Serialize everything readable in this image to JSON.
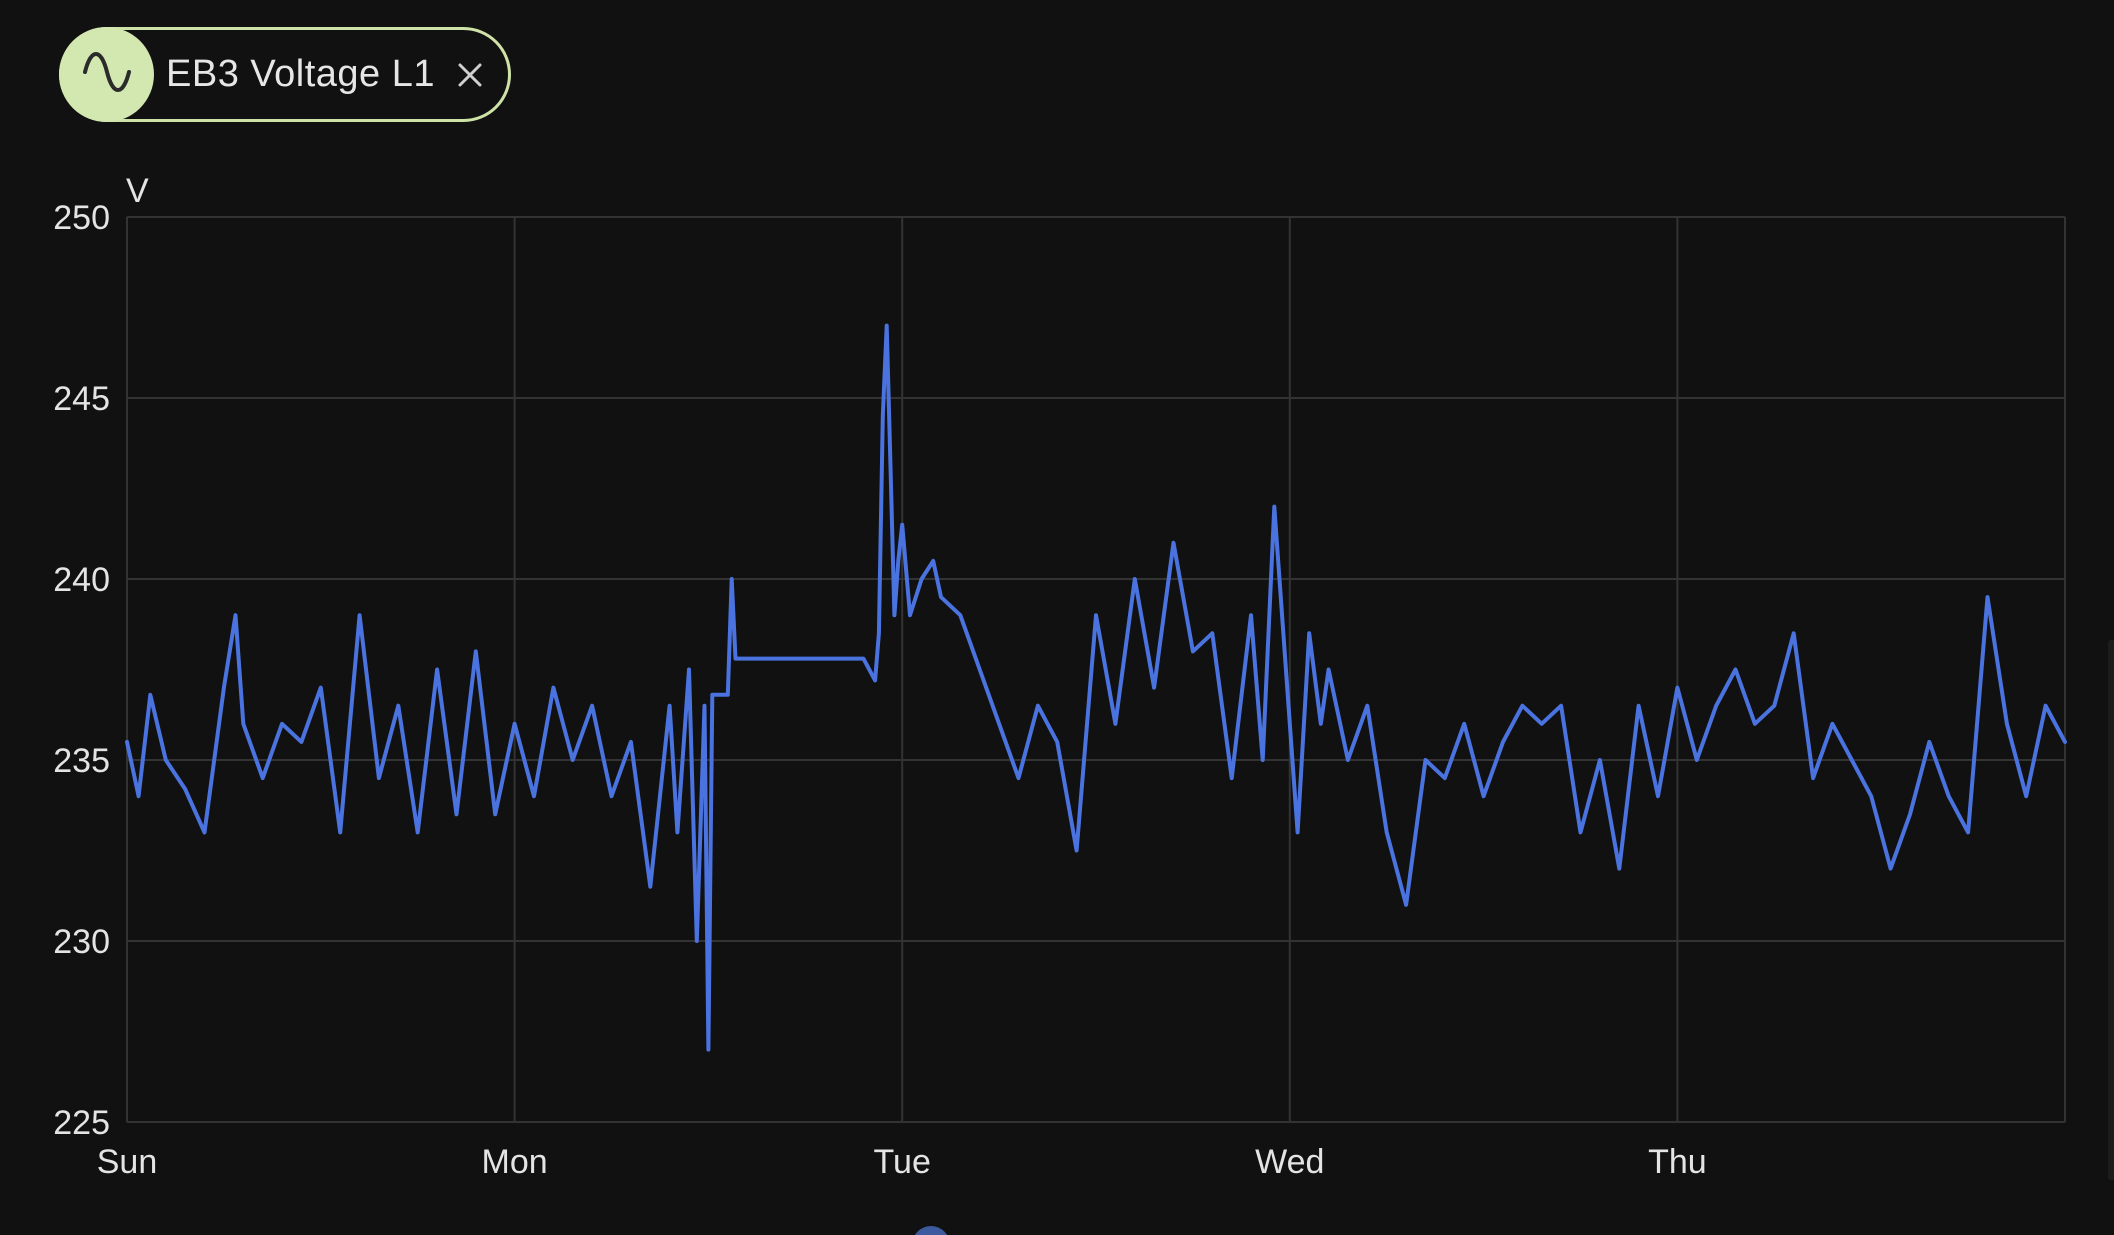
{
  "legend_chip": {
    "label": "EB3 Voltage L1",
    "icon": "sine-wave-icon",
    "close_icon": "close-icon",
    "avatar_color": "#d3e8b0",
    "border_color": "#cfe3a8"
  },
  "colors": {
    "background": "#111111",
    "grid": "#333333",
    "series": "#4a73e0",
    "text": "#e4e4e4"
  },
  "chart_data": {
    "type": "line",
    "ylabel": "V",
    "ylim": [
      225,
      250
    ],
    "yticks": [
      "225",
      "230",
      "235",
      "240",
      "245",
      "250"
    ],
    "xlim": [
      0,
      5
    ],
    "xticks": [
      {
        "label": "Sun",
        "x": 0
      },
      {
        "label": "Mon",
        "x": 1
      },
      {
        "label": "Tue",
        "x": 2
      },
      {
        "label": "Wed",
        "x": 3
      },
      {
        "label": "Thu",
        "x": 4
      }
    ],
    "grid": true,
    "series": [
      {
        "name": "EB3 Voltage L1",
        "x": [
          0.0,
          0.03,
          0.06,
          0.1,
          0.15,
          0.2,
          0.25,
          0.28,
          0.3,
          0.35,
          0.4,
          0.45,
          0.5,
          0.55,
          0.6,
          0.65,
          0.7,
          0.75,
          0.8,
          0.85,
          0.9,
          0.95,
          1.0,
          1.05,
          1.1,
          1.15,
          1.2,
          1.25,
          1.3,
          1.35,
          1.4,
          1.42,
          1.45,
          1.47,
          1.49,
          1.5,
          1.51,
          1.52,
          1.55,
          1.56,
          1.57,
          1.6,
          1.7,
          1.8,
          1.9,
          1.93,
          1.94,
          1.95,
          1.96,
          1.97,
          1.98,
          1.99,
          2.0,
          2.02,
          2.05,
          2.08,
          2.1,
          2.15,
          2.2,
          2.25,
          2.3,
          2.35,
          2.4,
          2.45,
          2.5,
          2.55,
          2.6,
          2.65,
          2.7,
          2.75,
          2.8,
          2.85,
          2.9,
          2.93,
          2.96,
          3.0,
          3.02,
          3.05,
          3.08,
          3.1,
          3.15,
          3.2,
          3.25,
          3.3,
          3.35,
          3.4,
          3.45,
          3.5,
          3.55,
          3.6,
          3.65,
          3.7,
          3.75,
          3.8,
          3.85,
          3.9,
          3.95,
          4.0,
          4.05,
          4.1,
          4.15,
          4.2,
          4.25,
          4.3,
          4.35,
          4.4,
          4.45,
          4.5,
          4.55,
          4.6,
          4.65,
          4.7,
          4.75,
          4.8,
          4.85,
          4.9,
          4.95,
          5.0
        ],
        "y": [
          235.5,
          234.0,
          236.8,
          235.0,
          234.2,
          233.0,
          237.0,
          239.0,
          236.0,
          234.5,
          236.0,
          235.5,
          237.0,
          233.0,
          239.0,
          234.5,
          236.5,
          233.0,
          237.5,
          233.5,
          238.0,
          233.5,
          236.0,
          234.0,
          237.0,
          235.0,
          236.5,
          234.0,
          235.5,
          231.5,
          236.5,
          233.0,
          237.5,
          230.0,
          236.5,
          227.0,
          236.8,
          236.8,
          236.8,
          240.0,
          237.8,
          237.8,
          237.8,
          237.8,
          237.8,
          237.2,
          238.5,
          244.5,
          247.0,
          243.0,
          239.0,
          240.5,
          241.5,
          239.0,
          240.0,
          240.5,
          239.5,
          239.0,
          237.5,
          236.0,
          234.5,
          236.5,
          235.5,
          232.5,
          239.0,
          236.0,
          240.0,
          237.0,
          241.0,
          238.0,
          238.5,
          234.5,
          239.0,
          235.0,
          242.0,
          236.0,
          233.0,
          238.5,
          236.0,
          237.5,
          235.0,
          236.5,
          233.0,
          231.0,
          235.0,
          234.5,
          236.0,
          234.0,
          235.5,
          236.5,
          236.0,
          236.5,
          233.0,
          235.0,
          232.0,
          236.5,
          234.0,
          237.0,
          235.0,
          236.5,
          237.5,
          236.0,
          236.5,
          238.5,
          234.5,
          236.0,
          235.0,
          234.0,
          232.0,
          233.5,
          235.5,
          234.0,
          233.0,
          239.5,
          236.0,
          234.0,
          236.5,
          235.5
        ]
      }
    ]
  }
}
